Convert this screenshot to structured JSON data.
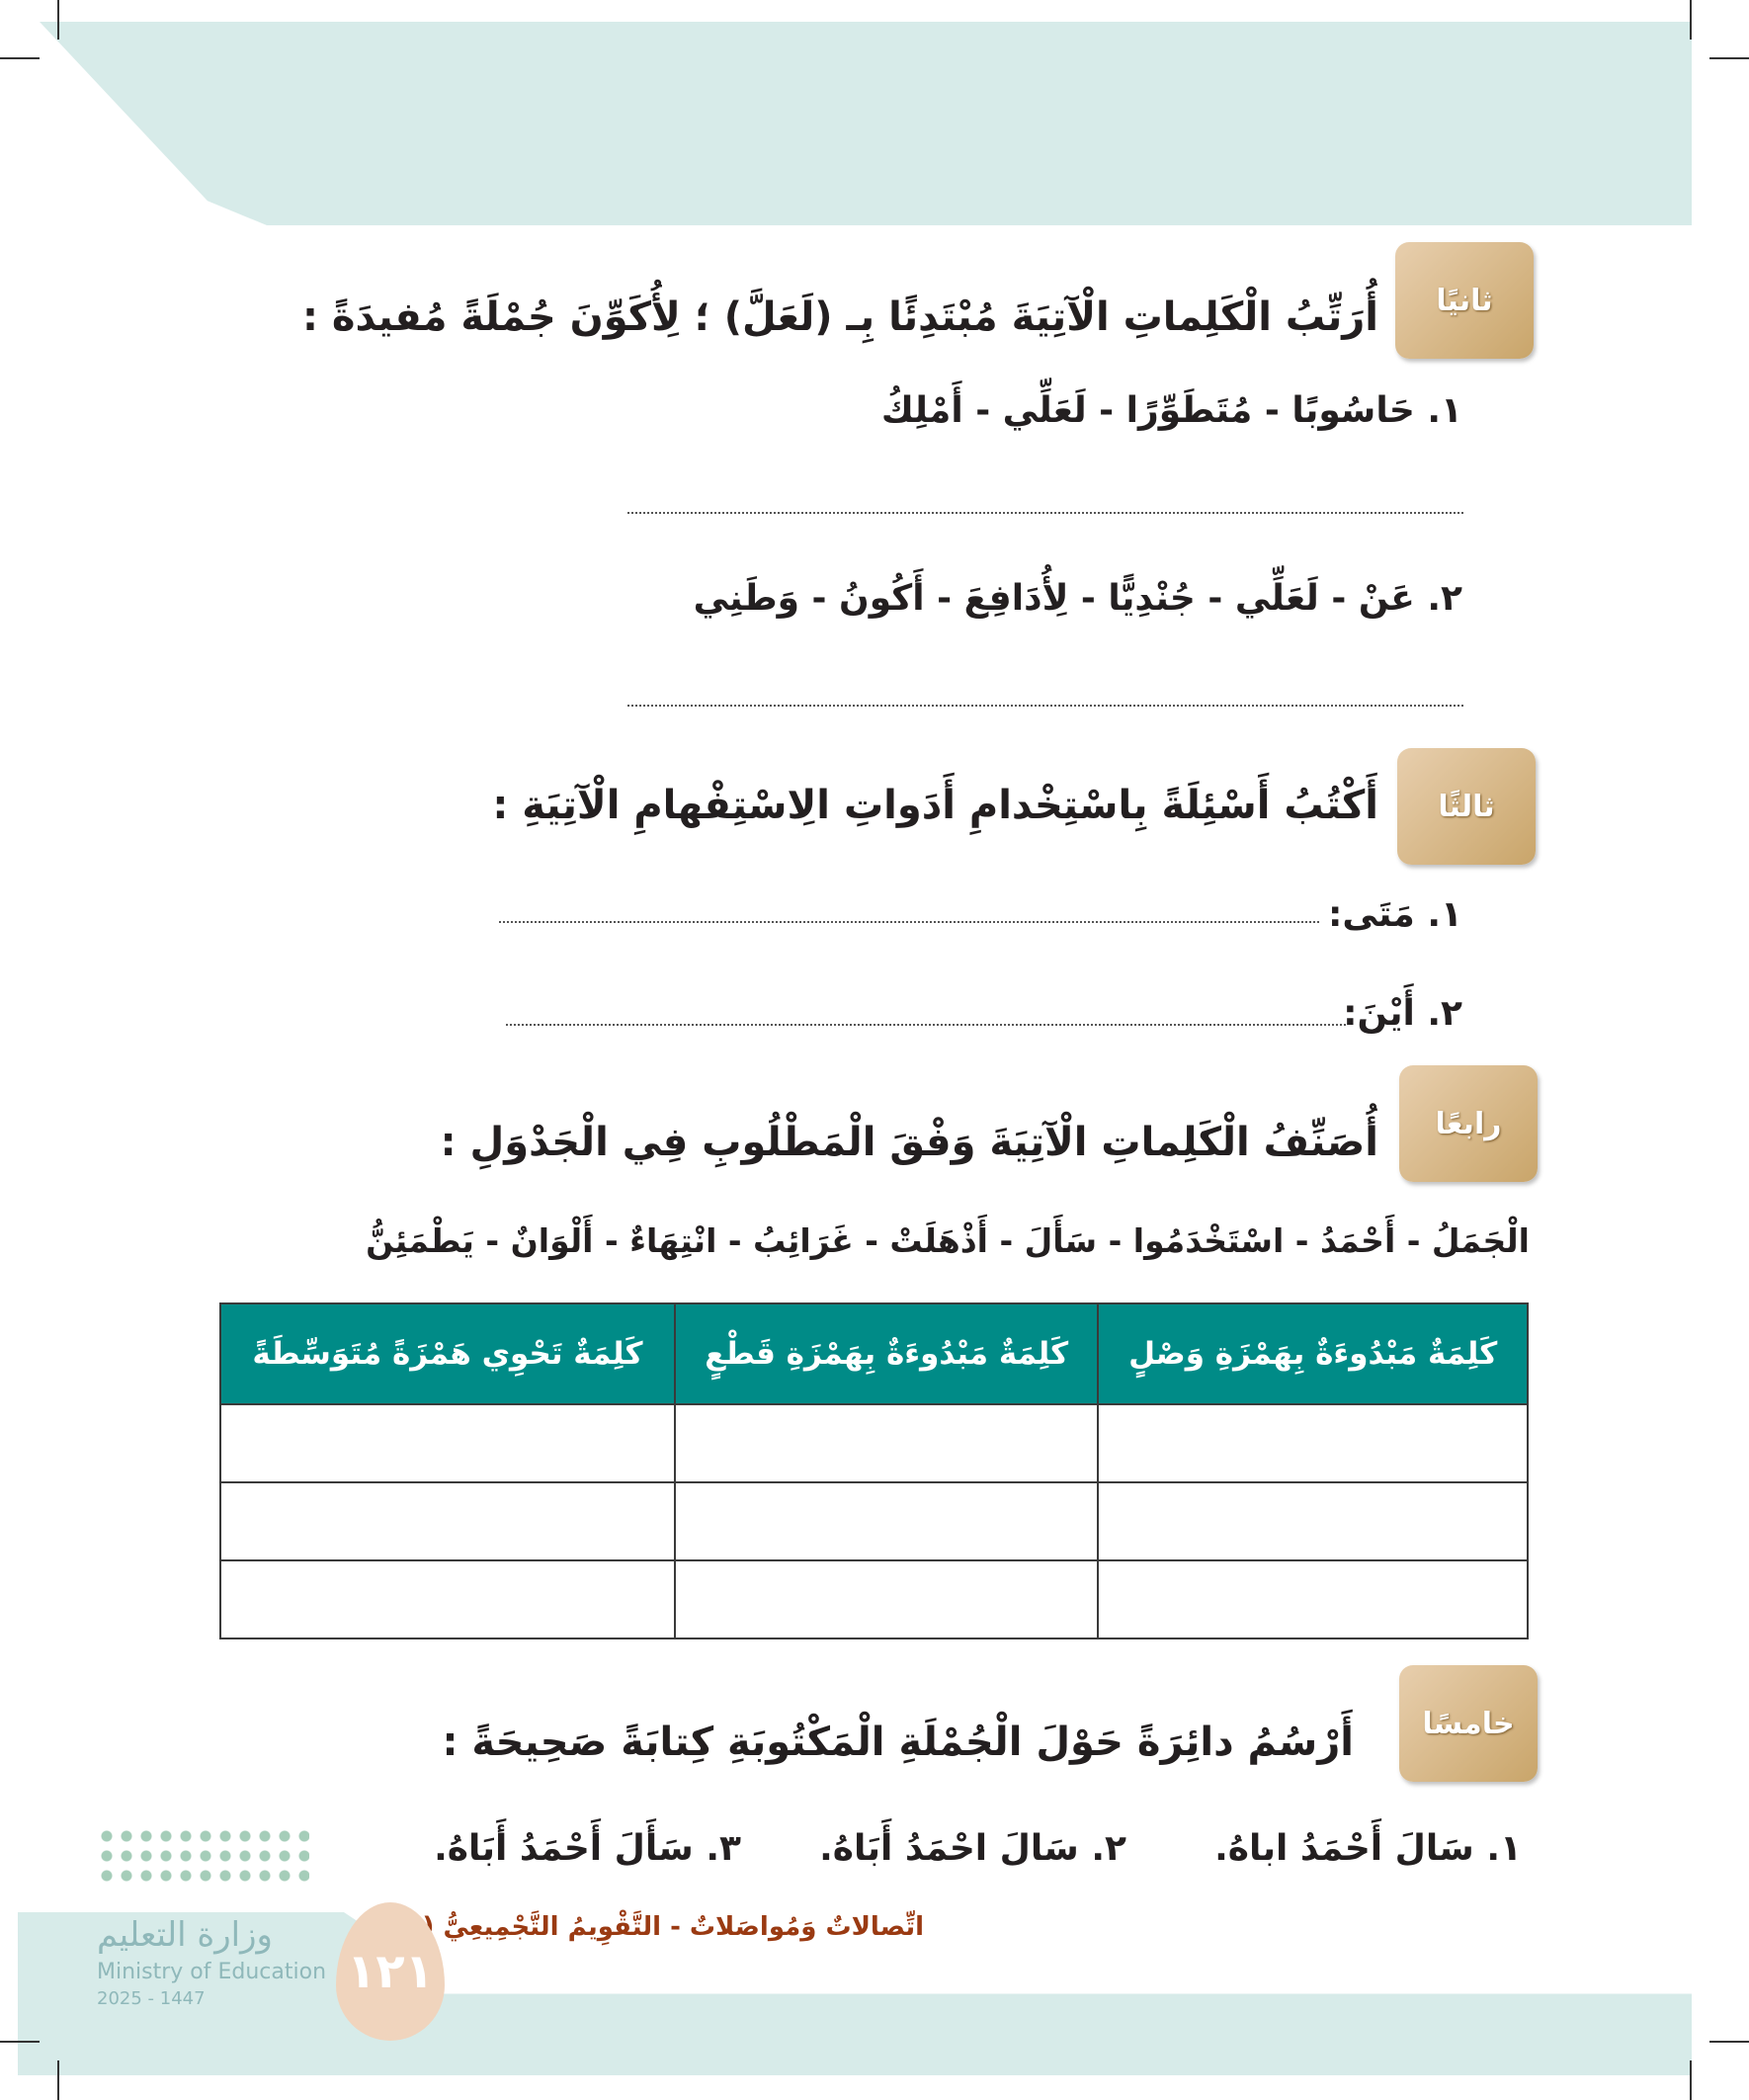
{
  "sections": [
    {
      "badge": "ثانيًا",
      "heading": "أُرَتِّبُ الْكَلِماتِ الْآتِيَةَ مُبْتَدِئًا بِـ (لَعَلَّ) ؛ لِأُكَوِّنَ جُمْلَةً مُفيدَةً :",
      "items": [
        "١. حَاسُوبًا  -  مُتَطَوِّرًا  -  لَعَلِّي  -  أَمْلِكُ",
        "٢. عَنْ  -  لَعَلِّي  -  جُنْدِيًّا  -  لِأُدَافِعَ  -  أَكُونُ  -  وَطَنِي"
      ]
    },
    {
      "badge": "ثالثًا",
      "heading": "أَكْتُبُ أَسْئِلَةً بِاسْتِخْدامِ أَدَواتِ الِاسْتِفْهامِ الْآتِيَةِ :",
      "items": [
        "١. مَتَى:",
        "٢. أَيْنَ:"
      ]
    },
    {
      "badge": "رابعًا",
      "heading": "أُصَنِّفُ الْكَلِماتِ الْآتِيَةَ وَفْقَ الْمَطْلُوبِ فِي الْجَدْوَلِ :",
      "words": "الْجَمَلُ - أَحْمَدُ - اسْتَخْدَمُوا - سَأَلَ - أَذْهَلَتْ - غَرَائِبُ - انْتِهَاءٌ - أَلْوَانٌ - يَطْمَئِنُّ",
      "table": {
        "headers": [
          "كَلِمَةٌ مَبْدُوءَةٌ بِهَمْزَةِ وَصْلٍ",
          "كَلِمَةٌ مَبْدُوءَةٌ بِهَمْزَةِ قَطْعٍ",
          "كَلِمَةٌ تَحْوِي هَمْزَةً مُتَوَسِّطَةً"
        ],
        "rows": 3
      }
    },
    {
      "badge": "خامسًا",
      "heading": "أَرْسُمُ دائِرَةً حَوْلَ الْجُمْلَةِ الْمَكْتُوبَةِ كِتابَةً صَحِيحَةً :",
      "items": [
        "١.  سَالَ أَحْمَدُ اباهُ.",
        "٢.  سَالَ احْمَدُ أَبَاهُ.",
        "٣.  سَأَلَ أَحْمَدُ أَبَاهُ."
      ]
    }
  ],
  "footer": {
    "unit": "اتِّصالاتٌ وَمُواصَلاتٌ - التَّقْوِيمُ التَّجْمِيعِيُّ (٧)",
    "page": "١٢١"
  },
  "logo": {
    "arabic": "وزارة التعليم",
    "english": "Ministry of Education",
    "year": "2025 - 1447"
  },
  "colors": {
    "teal": "#008b87",
    "band": "#d7ebe9",
    "badge": "#c9a56a",
    "footer": "#9a3a12"
  }
}
